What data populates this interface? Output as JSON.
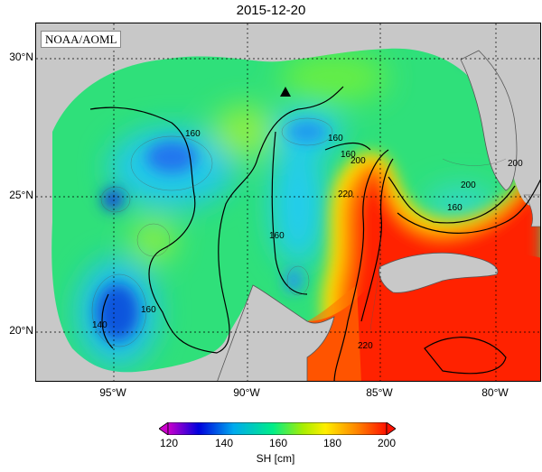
{
  "title": "2015-12-20",
  "source": "NOAA/AOML",
  "axes": {
    "lat_ticks": [
      "30°N",
      "25°N",
      "20°N"
    ],
    "lon_ticks": [
      "95°W",
      "90°W",
      "85°W",
      "80°W"
    ]
  },
  "colorbar": {
    "label": "SH [cm]",
    "ticks": [
      "120",
      "140",
      "160",
      "180",
      "200"
    ],
    "range": [
      120,
      200
    ],
    "colors": [
      "#cc00cc",
      "#0000dd",
      "#00aaee",
      "#00ee88",
      "#aaee00",
      "#ffee00",
      "#ff8800",
      "#ff1100"
    ]
  },
  "contour_labels": [
    "160",
    "160",
    "160",
    "160",
    "200",
    "200",
    "220",
    "160",
    "140",
    "160",
    "220",
    "200"
  ],
  "marker": "station-triangle-icon"
}
